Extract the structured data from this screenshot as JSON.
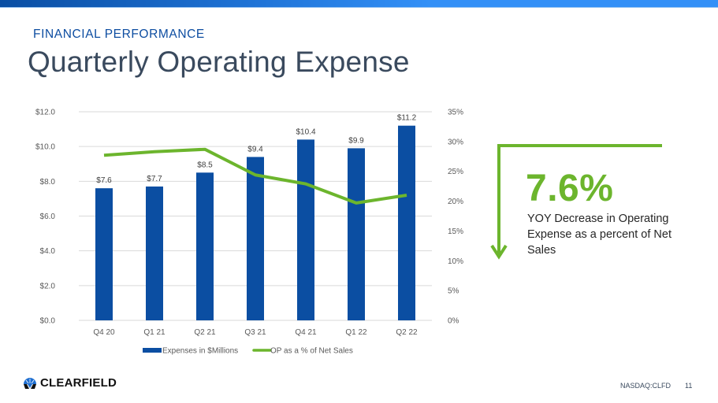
{
  "header": {
    "kicker": "FINANCIAL PERFORMANCE",
    "title": "Quarterly Operating Expense"
  },
  "colors": {
    "bar": "#0b4ea2",
    "line": "#6cb52d",
    "accent_green": "#6cb52d",
    "title": "#3a4a5e",
    "kicker": "#0d4da1"
  },
  "chart_data": {
    "type": "bar",
    "title": "",
    "categories": [
      "Q4 20",
      "Q1 21",
      "Q2 21",
      "Q3 21",
      "Q4 21",
      "Q1 22",
      "Q2 22"
    ],
    "series": [
      {
        "name": "Expenses in $Millions",
        "type": "bar",
        "axis": "left",
        "values": [
          7.6,
          7.7,
          8.5,
          9.4,
          10.4,
          9.9,
          11.2
        ],
        "labels": [
          "$7.6",
          "$7.7",
          "$8.5",
          "$9.4",
          "$10.4",
          "$9.9",
          "$11.2"
        ]
      },
      {
        "name": "OP as a % of Net Sales",
        "type": "line",
        "axis": "right",
        "values": [
          27.7,
          28.3,
          28.7,
          24.4,
          22.9,
          19.7,
          21.0
        ]
      }
    ],
    "y_left": {
      "ylim": [
        0,
        12
      ],
      "ticks": [
        0,
        2,
        4,
        6,
        8,
        10,
        12
      ],
      "tick_labels": [
        "$0.0",
        "$2.0",
        "$4.0",
        "$6.0",
        "$8.0",
        "$10.0",
        "$12.0"
      ]
    },
    "y_right": {
      "ylim": [
        0,
        35
      ],
      "ticks": [
        0,
        5,
        10,
        15,
        20,
        25,
        30,
        35
      ],
      "tick_labels": [
        "0%",
        "5%",
        "10%",
        "15%",
        "20%",
        "25%",
        "30%",
        "35%"
      ]
    },
    "xlabel": "",
    "ylabel": "",
    "grid": true,
    "legend": {
      "position": "bottom",
      "entries": [
        "Expenses in $Millions",
        "OP as a % of Net Sales"
      ]
    }
  },
  "callout": {
    "value": "7.6%",
    "text": "YOY Decrease in Operating Expense as a percent of Net Sales",
    "arrow_icon": "down-arrow-icon"
  },
  "footer": {
    "logo_text": "CLEARFIELD",
    "ticker": "NASDAQ:CLFD",
    "page_number": "11"
  }
}
